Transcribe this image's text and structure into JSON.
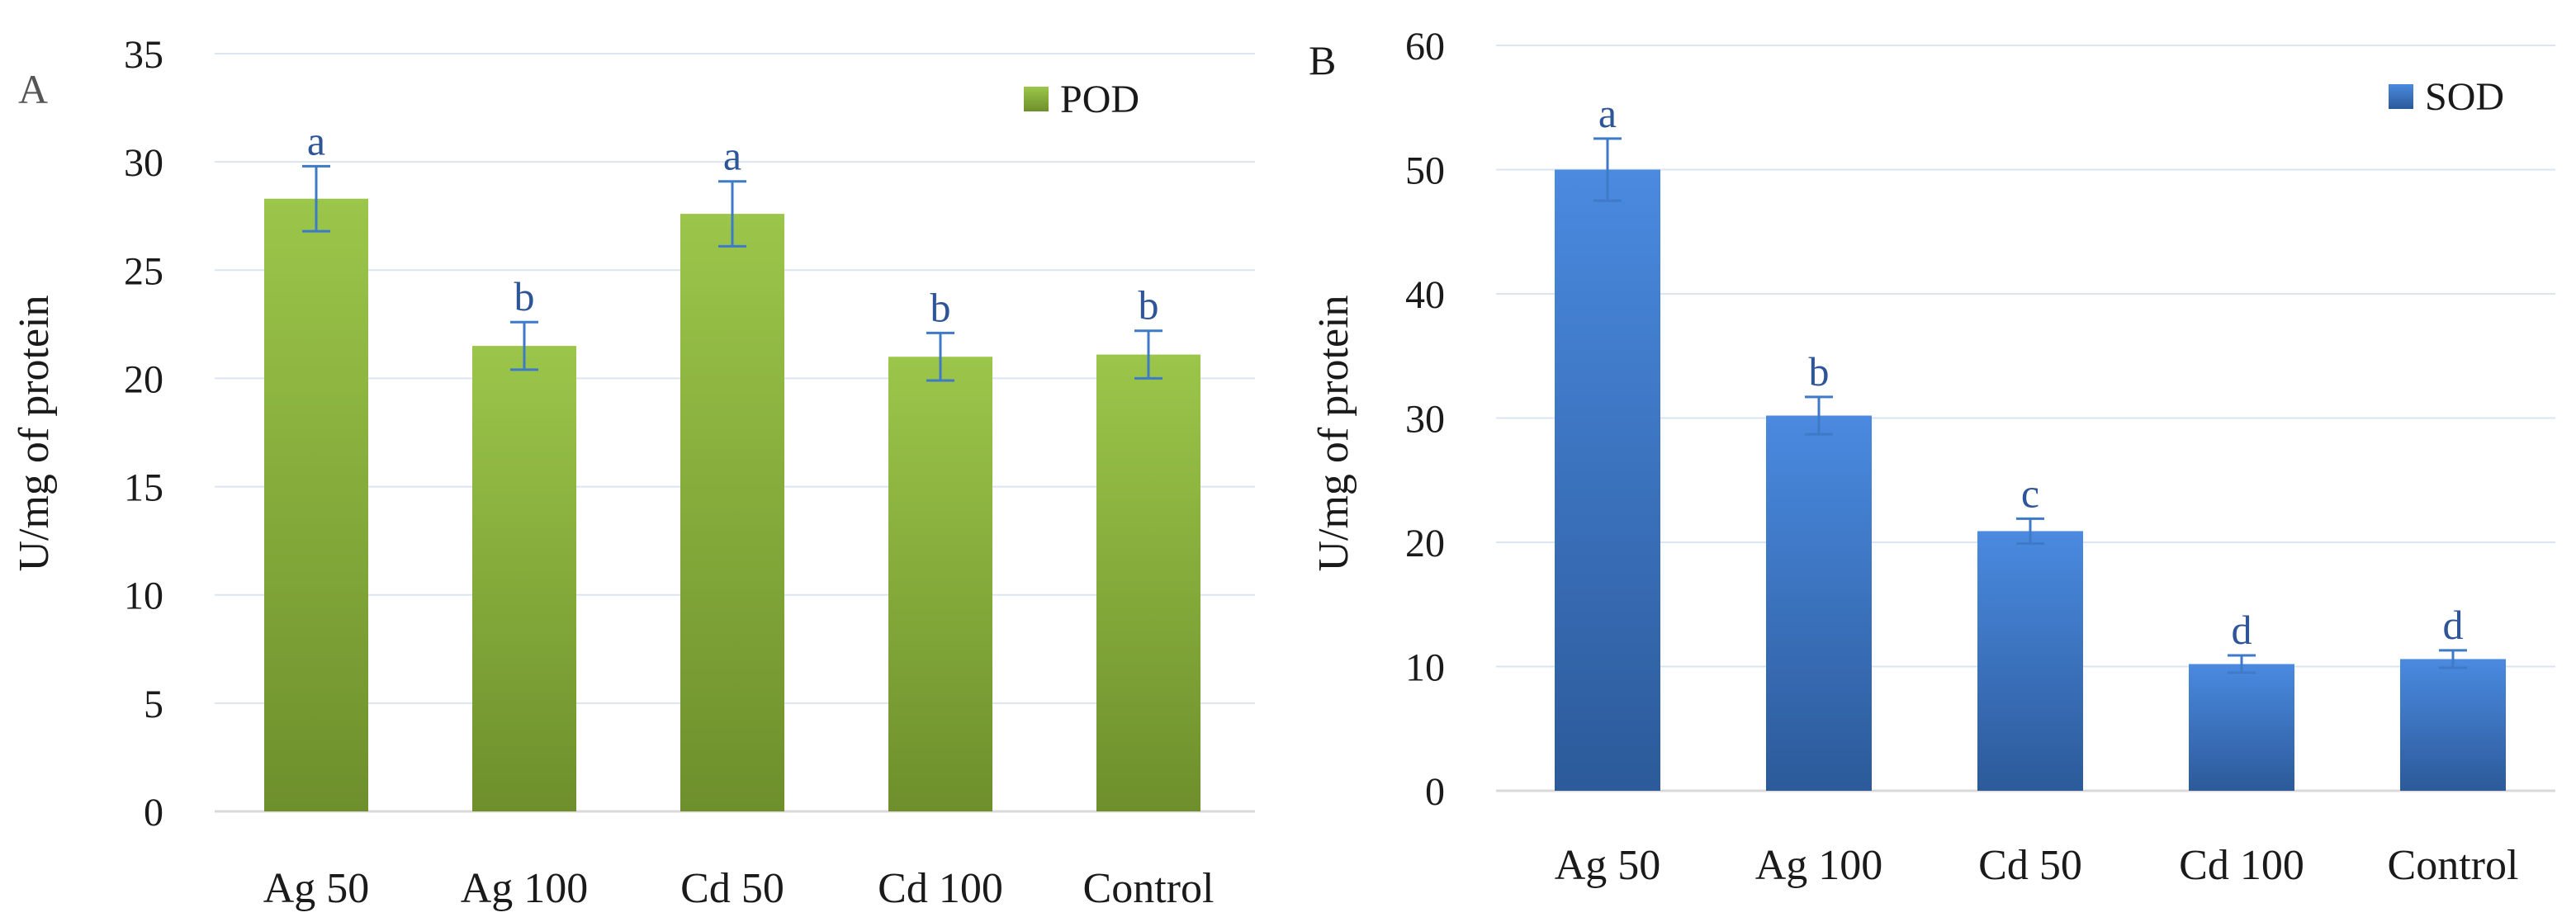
{
  "colors": {
    "grid": "#dbe5f1",
    "axis": "#d9d9d9",
    "text": "#1a1a1a",
    "sig_text": "#2e5597",
    "error_bar": "#3f7ac8"
  },
  "chart_data": [
    {
      "type": "bar",
      "panel_label": "A",
      "title": "",
      "xlabel": "",
      "ylabel": "U/mg of protein",
      "categories": [
        "Ag 50",
        "Ag 100",
        "Cd 50",
        "Cd 100",
        "Control"
      ],
      "series": [
        {
          "name": "POD",
          "values": [
            28.3,
            21.5,
            27.6,
            21.0,
            21.1
          ],
          "errors": [
            1.5,
            1.1,
            1.5,
            1.1,
            1.1
          ],
          "significance": [
            "a",
            "b",
            "a",
            "b",
            "b"
          ],
          "color_top": "#9bc64a",
          "color_bottom": "#6e8f2c"
        }
      ],
      "ylim": [
        0,
        35
      ],
      "yticks": [
        0,
        5,
        10,
        15,
        20,
        25,
        30,
        35
      ],
      "grid": true,
      "legend_position": "top-right"
    },
    {
      "type": "bar",
      "panel_label": "B",
      "title": "",
      "xlabel": "",
      "ylabel": "U/mg  of protein",
      "categories": [
        "Ag 50",
        "Ag 100",
        "Cd 50",
        "Cd 100",
        "Control"
      ],
      "series": [
        {
          "name": "SOD",
          "values": [
            50.0,
            30.2,
            20.9,
            10.2,
            10.6
          ],
          "errors": [
            2.5,
            1.5,
            1.0,
            0.7,
            0.7
          ],
          "significance": [
            "a",
            "b",
            "c",
            "d",
            "d"
          ],
          "color_top": "#4a8ae0",
          "color_bottom": "#2c5a9a"
        }
      ],
      "ylim": [
        0,
        60
      ],
      "yticks": [
        0,
        10,
        20,
        30,
        40,
        50,
        60
      ],
      "grid": true,
      "legend_position": "top-right"
    }
  ]
}
